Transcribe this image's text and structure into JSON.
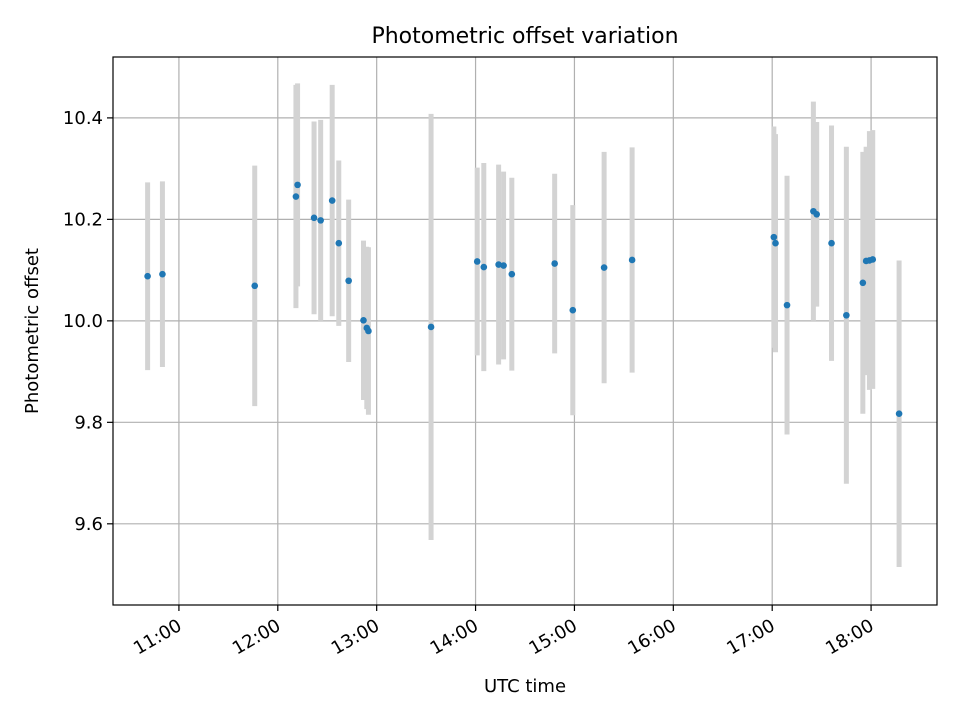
{
  "chart_data": {
    "type": "scatter",
    "title": "Photometric offset variation",
    "xlabel": "UTC time",
    "ylabel": "Photometric offset",
    "x_ticks": [
      "11:00",
      "12:00",
      "13:00",
      "14:00",
      "15:00",
      "16:00",
      "17:00",
      "18:00"
    ],
    "y_ticks": [
      "9.6",
      "9.8",
      "10.0",
      "10.2",
      "10.4"
    ],
    "xlim": [
      "10:20",
      "18:40"
    ],
    "ylim": [
      9.44,
      10.52
    ],
    "grid": true,
    "colors": {
      "point": "#1f77b4",
      "errorbar": "#d3d3d3",
      "grid": "#b0b0b0"
    },
    "series": [
      {
        "points": [
          {
            "x": "10:41",
            "y": 10.088,
            "err": 0.185
          },
          {
            "x": "10:50",
            "y": 10.092,
            "err": 0.183
          },
          {
            "x": "11:46",
            "y": 10.069,
            "err": 0.237
          },
          {
            "x": "12:11",
            "y": 10.245,
            "err": 0.22
          },
          {
            "x": "12:12",
            "y": 10.268,
            "err": 0.2
          },
          {
            "x": "12:22",
            "y": 10.203,
            "err": 0.19
          },
          {
            "x": "12:26",
            "y": 10.198,
            "err": 0.198
          },
          {
            "x": "12:33",
            "y": 10.237,
            "err": 0.228
          },
          {
            "x": "12:37",
            "y": 10.153,
            "err": 0.163
          },
          {
            "x": "12:43",
            "y": 10.079,
            "err": 0.16
          },
          {
            "x": "12:52",
            "y": 10.001,
            "err": 0.157
          },
          {
            "x": "12:54",
            "y": 9.986,
            "err": 0.16
          },
          {
            "x": "12:55",
            "y": 9.98,
            "err": 0.165
          },
          {
            "x": "13:33",
            "y": 9.988,
            "err": 0.42
          },
          {
            "x": "14:01",
            "y": 10.117,
            "err": 0.185
          },
          {
            "x": "14:05",
            "y": 10.106,
            "err": 0.205
          },
          {
            "x": "14:14",
            "y": 10.111,
            "err": 0.197
          },
          {
            "x": "14:17",
            "y": 10.109,
            "err": 0.185
          },
          {
            "x": "14:22",
            "y": 10.092,
            "err": 0.19
          },
          {
            "x": "14:48",
            "y": 10.113,
            "err": 0.177
          },
          {
            "x": "14:59",
            "y": 10.021,
            "err": 0.207
          },
          {
            "x": "15:18",
            "y": 10.105,
            "err": 0.228
          },
          {
            "x": "15:35",
            "y": 10.12,
            "err": 0.222
          },
          {
            "x": "17:01",
            "y": 10.165,
            "err": 0.218
          },
          {
            "x": "17:02",
            "y": 10.153,
            "err": 0.215
          },
          {
            "x": "17:09",
            "y": 10.031,
            "err": 0.255
          },
          {
            "x": "17:25",
            "y": 10.216,
            "err": 0.216
          },
          {
            "x": "17:27",
            "y": 10.21,
            "err": 0.182
          },
          {
            "x": "17:36",
            "y": 10.153,
            "err": 0.232
          },
          {
            "x": "17:45",
            "y": 10.011,
            "err": 0.332
          },
          {
            "x": "17:55",
            "y": 10.075,
            "err": 0.258
          },
          {
            "x": "17:57",
            "y": 10.118,
            "err": 0.225
          },
          {
            "x": "17:59",
            "y": 10.119,
            "err": 0.255
          },
          {
            "x": "18:01",
            "y": 10.121,
            "err": 0.255
          },
          {
            "x": "18:17",
            "y": 9.817,
            "err": 0.302
          }
        ]
      }
    ]
  }
}
